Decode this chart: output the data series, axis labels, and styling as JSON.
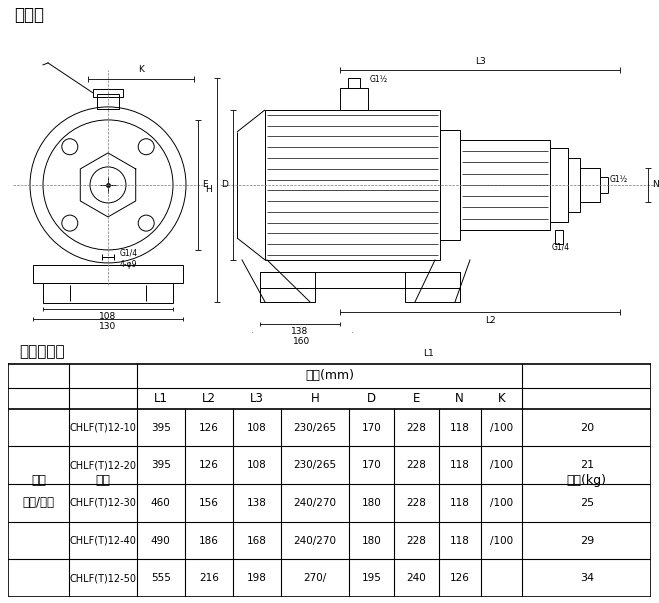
{
  "title_diagram": "安装图",
  "title_table": "尺寸和重量",
  "bg_color": "#ffffff",
  "line_color": "#000000",
  "table_rows": [
    [
      "CHLF(T)12-10",
      "395",
      "126",
      "108",
      "230/265",
      "170",
      "228",
      "118",
      "/100",
      "20"
    ],
    [
      "CHLF(T)12-20",
      "395",
      "126",
      "108",
      "230/265",
      "170",
      "228",
      "118",
      "/100",
      "21"
    ],
    [
      "CHLF(T)12-30",
      "460",
      "156",
      "138",
      "240/270",
      "180",
      "228",
      "118",
      "/100",
      "25"
    ],
    [
      "CHLF(T)12-40",
      "490",
      "186",
      "168",
      "240/270",
      "180",
      "228",
      "118",
      "/100",
      "29"
    ],
    [
      "CHLF(T)12-50",
      "555",
      "216",
      "198",
      "270/",
      "195",
      "240",
      "126",
      "",
      "34"
    ]
  ],
  "motor_label": "三相/单相",
  "col_header1": "尺寸(mm)",
  "col_motor": "电机",
  "col_model": "型号",
  "col_weight": "重量(kg)",
  "sub_headers": [
    "L1",
    "L2",
    "L3",
    "H",
    "D",
    "E",
    "N",
    "K"
  ]
}
